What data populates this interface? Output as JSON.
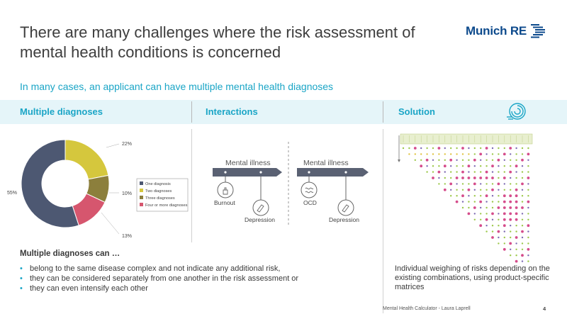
{
  "slide": {
    "title": "There are many challenges where the risk assessment of mental health conditions is concerned",
    "subtitle": "In many cases, an applicant can have multiple mental health diagnoses",
    "logo_text": "Munich RE",
    "footer": "Mental Health Calculator - Laura Laprell",
    "page_number": "4"
  },
  "columns": {
    "col1": "Multiple diagnoses",
    "col2": "Interactions",
    "col3": "Solution"
  },
  "chart_data": {
    "type": "pie",
    "labels": [
      "One diagnosis",
      "Two diagnoses",
      "Three diagnoses",
      "Four or more diagnoses"
    ],
    "values": [
      55,
      22,
      10,
      13
    ],
    "value_labels": [
      "55%",
      "22%",
      "10%",
      "13%"
    ],
    "colors": [
      "#4d5872",
      "#d5c73d",
      "#8c7f3c",
      "#d6566e"
    ],
    "legend_position": "right"
  },
  "interactions": {
    "left": {
      "bar_label": "Mental illness",
      "item1": "Burnout",
      "item2": "Depression"
    },
    "right": {
      "bar_label": "Mental illness",
      "item1": "OCD",
      "item2": "Depression"
    }
  },
  "multiple_diagnoses": {
    "heading": "Multiple diagnoses can …",
    "bullets": [
      "belong to the same disease complex and not indicate any additional risk,",
      "they can be considered separately from one another in the risk assessment or",
      "they can even intensify each other"
    ]
  },
  "solution": {
    "text": "Individual weighing of risks depending on the existing combinations, using product-specific matrices"
  },
  "colors": {
    "accent": "#1aa5c6",
    "band": "#e5f5f9",
    "brand": "#0d4a8c",
    "arrow": "#5a6173"
  }
}
